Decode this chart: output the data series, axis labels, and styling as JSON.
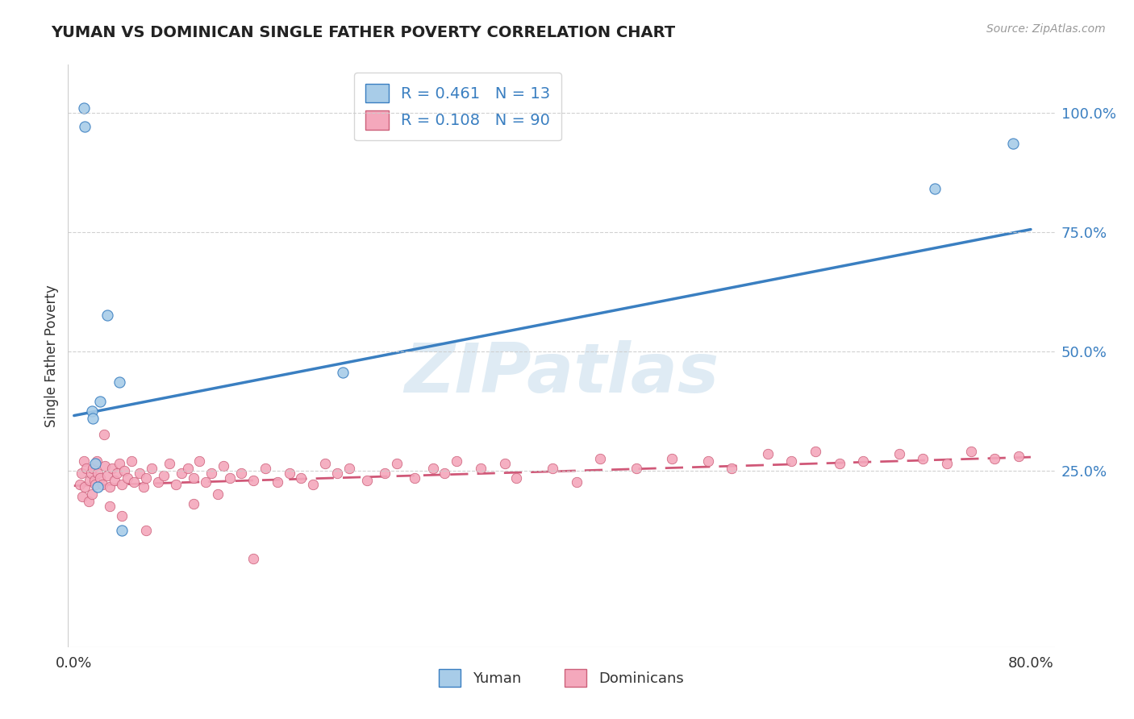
{
  "title": "YUMAN VS DOMINICAN SINGLE FATHER POVERTY CORRELATION CHART",
  "source": "Source: ZipAtlas.com",
  "ylabel": "Single Father Poverty",
  "xlim": [
    -0.005,
    0.82
  ],
  "ylim": [
    -0.12,
    1.1
  ],
  "x_ticks": [
    0.0,
    0.8
  ],
  "x_tick_labels": [
    "0.0%",
    "80.0%"
  ],
  "y_ticks_right": [
    0.25,
    0.5,
    0.75,
    1.0
  ],
  "y_tick_labels_right": [
    "25.0%",
    "50.0%",
    "75.0%",
    "100.0%"
  ],
  "blue_R": 0.461,
  "blue_N": 13,
  "pink_R": 0.108,
  "pink_N": 90,
  "blue_face_color": "#a8cce8",
  "pink_face_color": "#f4a8bc",
  "blue_edge_color": "#3a7fc1",
  "pink_edge_color": "#cc607a",
  "blue_line_color": "#3a7fc1",
  "pink_line_color": "#d05878",
  "right_axis_color": "#3a7fc1",
  "legend_label_blue": "Yuman",
  "legend_label_pink": "Dominicans",
  "blue_scatter_x": [
    0.008,
    0.009,
    0.015,
    0.016,
    0.018,
    0.02,
    0.022,
    0.038,
    0.04,
    0.225,
    0.72,
    0.785,
    0.028
  ],
  "blue_scatter_y": [
    1.01,
    0.97,
    0.375,
    0.36,
    0.265,
    0.215,
    0.395,
    0.435,
    0.125,
    0.455,
    0.84,
    0.935,
    0.575
  ],
  "pink_scatter_x": [
    0.005,
    0.006,
    0.007,
    0.008,
    0.009,
    0.01,
    0.012,
    0.013,
    0.014,
    0.015,
    0.016,
    0.017,
    0.018,
    0.019,
    0.02,
    0.022,
    0.024,
    0.026,
    0.028,
    0.03,
    0.032,
    0.034,
    0.036,
    0.038,
    0.04,
    0.042,
    0.045,
    0.048,
    0.05,
    0.055,
    0.058,
    0.06,
    0.065,
    0.07,
    0.075,
    0.08,
    0.085,
    0.09,
    0.095,
    0.1,
    0.105,
    0.11,
    0.115,
    0.12,
    0.125,
    0.13,
    0.14,
    0.15,
    0.16,
    0.17,
    0.18,
    0.19,
    0.2,
    0.21,
    0.22,
    0.23,
    0.245,
    0.26,
    0.27,
    0.285,
    0.3,
    0.31,
    0.32,
    0.34,
    0.36,
    0.37,
    0.4,
    0.42,
    0.44,
    0.47,
    0.5,
    0.53,
    0.55,
    0.58,
    0.6,
    0.62,
    0.64,
    0.66,
    0.69,
    0.71,
    0.73,
    0.75,
    0.77,
    0.79,
    0.025,
    0.03,
    0.04,
    0.06,
    0.1,
    0.15
  ],
  "pink_scatter_y": [
    0.22,
    0.245,
    0.195,
    0.27,
    0.215,
    0.255,
    0.185,
    0.23,
    0.245,
    0.2,
    0.255,
    0.23,
    0.22,
    0.27,
    0.245,
    0.235,
    0.22,
    0.26,
    0.24,
    0.215,
    0.255,
    0.23,
    0.245,
    0.265,
    0.22,
    0.25,
    0.235,
    0.27,
    0.225,
    0.245,
    0.215,
    0.235,
    0.255,
    0.225,
    0.24,
    0.265,
    0.22,
    0.245,
    0.255,
    0.235,
    0.27,
    0.225,
    0.245,
    0.2,
    0.26,
    0.235,
    0.245,
    0.23,
    0.255,
    0.225,
    0.245,
    0.235,
    0.22,
    0.265,
    0.245,
    0.255,
    0.23,
    0.245,
    0.265,
    0.235,
    0.255,
    0.245,
    0.27,
    0.255,
    0.265,
    0.235,
    0.255,
    0.225,
    0.275,
    0.255,
    0.275,
    0.27,
    0.255,
    0.285,
    0.27,
    0.29,
    0.265,
    0.27,
    0.285,
    0.275,
    0.265,
    0.29,
    0.275,
    0.28,
    0.325,
    0.175,
    0.155,
    0.125,
    0.18,
    0.065
  ],
  "blue_trend_x": [
    0.0,
    0.8
  ],
  "blue_trend_y": [
    0.365,
    0.755
  ],
  "pink_trend_x": [
    0.0,
    0.8
  ],
  "pink_trend_y": [
    0.218,
    0.278
  ],
  "watermark_text": "ZIPatlas",
  "background_color": "#ffffff",
  "grid_color": "#cccccc"
}
